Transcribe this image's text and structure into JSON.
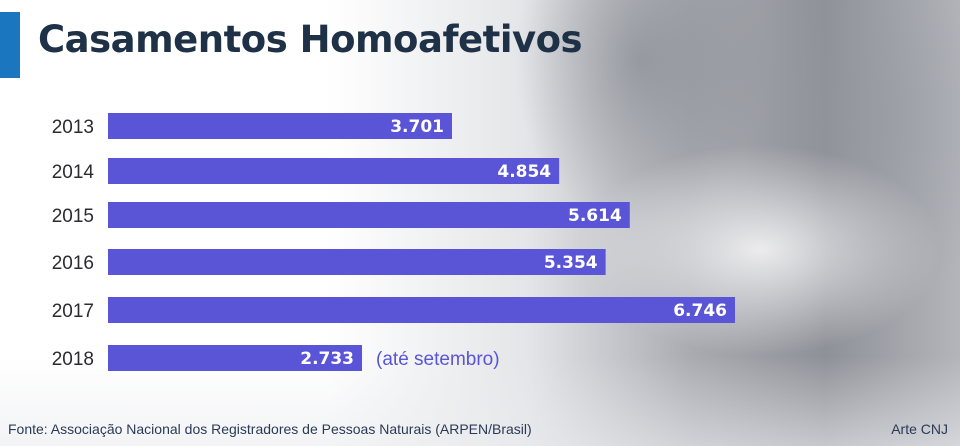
{
  "title": "Casamentos Homoafetivos",
  "footer": {
    "source": "Fonte: Associação Nacional dos Registradores de Pessoas Naturais (ARPEN/Brasil)",
    "credit": "Arte CNJ"
  },
  "colors": {
    "bar": "#5a54d6",
    "accent": "#1976bf",
    "title": "#1e3146"
  },
  "chart_data": {
    "type": "bar",
    "orientation": "horizontal",
    "categories": [
      "2013",
      "2014",
      "2015",
      "2016",
      "2017",
      "2018"
    ],
    "values": [
      3701,
      4854,
      5614,
      5354,
      6746,
      2733
    ],
    "value_labels": [
      "3.701",
      "4.854",
      "5.614",
      "5.354",
      "6.746",
      "2.733"
    ],
    "annotations": [
      {
        "category": "2018",
        "text": "(até setembro)"
      }
    ],
    "grid": false,
    "legend": "none"
  }
}
